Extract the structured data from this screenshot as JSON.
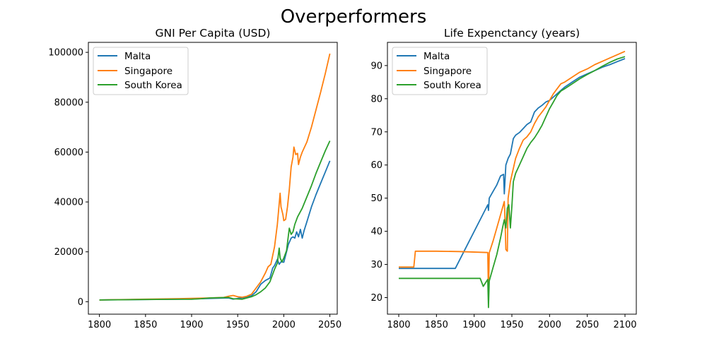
{
  "figure": {
    "suptitle": "Overperformers"
  },
  "chart_data": [
    {
      "type": "line",
      "title": "GNI Per Capita (USD)",
      "xlabel": "",
      "ylabel": "",
      "xlim": [
        1788,
        2058
      ],
      "ylim": [
        -5000,
        104000
      ],
      "xticks": [
        1800,
        1850,
        1900,
        1950,
        2000,
        2050
      ],
      "yticks": [
        0,
        20000,
        40000,
        60000,
        80000,
        100000
      ],
      "grid": false,
      "legend": "top-left",
      "series": [
        {
          "name": "Malta",
          "color": "#1f77b4",
          "points": [
            [
              1800,
              700
            ],
            [
              1850,
              900
            ],
            [
              1900,
              1100
            ],
            [
              1920,
              1300
            ],
            [
              1940,
              1500
            ],
            [
              1945,
              1000
            ],
            [
              1950,
              1300
            ],
            [
              1960,
              1800
            ],
            [
              1965,
              2400
            ],
            [
              1970,
              4000
            ],
            [
              1975,
              7000
            ],
            [
              1980,
              8500
            ],
            [
              1985,
              9500
            ],
            [
              1988,
              13500
            ],
            [
              1990,
              14500
            ],
            [
              1993,
              17000
            ],
            [
              1995,
              15000
            ],
            [
              1997,
              16000
            ],
            [
              2000,
              15800
            ],
            [
              2003,
              20000
            ],
            [
              2005,
              23000
            ],
            [
              2008,
              25500
            ],
            [
              2010,
              26000
            ],
            [
              2012,
              25500
            ],
            [
              2014,
              28000
            ],
            [
              2016,
              26000
            ],
            [
              2018,
              29000
            ],
            [
              2020,
              25500
            ],
            [
              2022,
              28500
            ],
            [
              2025,
              32000
            ],
            [
              2030,
              38000
            ],
            [
              2035,
              43000
            ],
            [
              2040,
              47500
            ],
            [
              2045,
              52000
            ],
            [
              2050,
              56500
            ]
          ]
        },
        {
          "name": "Singapore",
          "color": "#ff7f0e",
          "points": [
            [
              1800,
              700
            ],
            [
              1850,
              1000
            ],
            [
              1900,
              1300
            ],
            [
              1920,
              1500
            ],
            [
              1935,
              1700
            ],
            [
              1940,
              2200
            ],
            [
              1945,
              2500
            ],
            [
              1950,
              2000
            ],
            [
              1955,
              1800
            ],
            [
              1960,
              2200
            ],
            [
              1965,
              3000
            ],
            [
              1970,
              5500
            ],
            [
              1975,
              8000
            ],
            [
              1980,
              11500
            ],
            [
              1983,
              14000
            ],
            [
              1986,
              15000
            ],
            [
              1990,
              22000
            ],
            [
              1993,
              31000
            ],
            [
              1996,
              43500
            ],
            [
              1997,
              38000
            ],
            [
              1999,
              35000
            ],
            [
              2000,
              32500
            ],
            [
              2002,
              33000
            ],
            [
              2004,
              38000
            ],
            [
              2006,
              45000
            ],
            [
              2008,
              54000
            ],
            [
              2010,
              58000
            ],
            [
              2011,
              62000
            ],
            [
              2013,
              59000
            ],
            [
              2015,
              59500
            ],
            [
              2016,
              55000
            ],
            [
              2018,
              58000
            ],
            [
              2020,
              60000
            ],
            [
              2025,
              64000
            ],
            [
              2030,
              70000
            ],
            [
              2035,
              77000
            ],
            [
              2040,
              84000
            ],
            [
              2045,
              91500
            ],
            [
              2050,
              99500
            ]
          ]
        },
        {
          "name": "South Korea",
          "color": "#2ca02c",
          "points": [
            [
              1800,
              700
            ],
            [
              1850,
              900
            ],
            [
              1900,
              1000
            ],
            [
              1910,
              1200
            ],
            [
              1920,
              1500
            ],
            [
              1930,
              1600
            ],
            [
              1940,
              1700
            ],
            [
              1945,
              1200
            ],
            [
              1950,
              1100
            ],
            [
              1955,
              1000
            ],
            [
              1960,
              1500
            ],
            [
              1965,
              2000
            ],
            [
              1970,
              2800
            ],
            [
              1975,
              4000
            ],
            [
              1980,
              5500
            ],
            [
              1985,
              8000
            ],
            [
              1990,
              13000
            ],
            [
              1993,
              15500
            ],
            [
              1995,
              21500
            ],
            [
              1996,
              17500
            ],
            [
              1998,
              16000
            ],
            [
              2000,
              17500
            ],
            [
              2003,
              20500
            ],
            [
              2006,
              29500
            ],
            [
              2008,
              27000
            ],
            [
              2010,
              28000
            ],
            [
              2012,
              31000
            ],
            [
              2015,
              34000
            ],
            [
              2020,
              37500
            ],
            [
              2025,
              42000
            ],
            [
              2030,
              46500
            ],
            [
              2035,
              51500
            ],
            [
              2040,
              56000
            ],
            [
              2045,
              60500
            ],
            [
              2050,
              64500
            ]
          ]
        }
      ]
    },
    {
      "type": "line",
      "title": "Life Expenctancy (years)",
      "xlabel": "",
      "ylabel": "",
      "xlim": [
        1785,
        2115
      ],
      "ylim": [
        15,
        97
      ],
      "xticks": [
        1800,
        1850,
        1900,
        1950,
        2000,
        2050,
        2100
      ],
      "yticks": [
        20,
        30,
        40,
        50,
        60,
        70,
        80,
        90
      ],
      "grid": false,
      "legend": "top-left",
      "series": [
        {
          "name": "Malta",
          "color": "#1f77b4",
          "points": [
            [
              1800,
              28.8
            ],
            [
              1850,
              28.8
            ],
            [
              1875,
              28.8
            ],
            [
              1918,
              48
            ],
            [
              1919,
              46.3
            ],
            [
              1920,
              50
            ],
            [
              1925,
              52
            ],
            [
              1930,
              54
            ],
            [
              1935,
              56.7
            ],
            [
              1939,
              57.2
            ],
            [
              1940,
              51.3
            ],
            [
              1942,
              60
            ],
            [
              1945,
              62
            ],
            [
              1948,
              63.3
            ],
            [
              1952,
              68
            ],
            [
              1955,
              69
            ],
            [
              1960,
              69.8
            ],
            [
              1965,
              71
            ],
            [
              1970,
              72.2
            ],
            [
              1975,
              73
            ],
            [
              1980,
              76
            ],
            [
              1985,
              77.2
            ],
            [
              1990,
              78
            ],
            [
              1995,
              79
            ],
            [
              2000,
              79.5
            ],
            [
              2005,
              80.5
            ],
            [
              2010,
              81.5
            ],
            [
              2015,
              82.5
            ],
            [
              2020,
              83.5
            ],
            [
              2030,
              85
            ],
            [
              2040,
              86.5
            ],
            [
              2050,
              87.5
            ],
            [
              2060,
              88.5
            ],
            [
              2070,
              89.5
            ],
            [
              2080,
              90.3
            ],
            [
              2090,
              91.2
            ],
            [
              2100,
              92.1
            ]
          ]
        },
        {
          "name": "Singapore",
          "color": "#ff7f0e",
          "points": [
            [
              1800,
              29.2
            ],
            [
              1820,
              29.2
            ],
            [
              1822,
              34
            ],
            [
              1850,
              34
            ],
            [
              1880,
              33.9
            ],
            [
              1918,
              33.6
            ],
            [
              1919,
              20.5
            ],
            [
              1920,
              33.5
            ],
            [
              1925,
              37
            ],
            [
              1930,
              41
            ],
            [
              1935,
              45
            ],
            [
              1940,
              49
            ],
            [
              1941,
              43
            ],
            [
              1942,
              34.5
            ],
            [
              1944,
              34
            ],
            [
              1945,
              50
            ],
            [
              1948,
              55
            ],
            [
              1952,
              59
            ],
            [
              1955,
              62
            ],
            [
              1960,
              65
            ],
            [
              1965,
              67.5
            ],
            [
              1970,
              68.5
            ],
            [
              1975,
              70
            ],
            [
              1980,
              72.5
            ],
            [
              1985,
              74.5
            ],
            [
              1990,
              76
            ],
            [
              1995,
              77.5
            ],
            [
              2000,
              79.5
            ],
            [
              2005,
              81.5
            ],
            [
              2010,
              83
            ],
            [
              2015,
              84.5
            ],
            [
              2020,
              85
            ],
            [
              2030,
              86.5
            ],
            [
              2040,
              88
            ],
            [
              2050,
              89
            ],
            [
              2060,
              90.3
            ],
            [
              2070,
              91.3
            ],
            [
              2080,
              92.3
            ],
            [
              2090,
              93.3
            ],
            [
              2100,
              94.3
            ]
          ]
        },
        {
          "name": "South Korea",
          "color": "#2ca02c",
          "points": [
            [
              1800,
              25.8
            ],
            [
              1850,
              25.8
            ],
            [
              1900,
              25.8
            ],
            [
              1908,
              25.8
            ],
            [
              1912,
              23.4
            ],
            [
              1918,
              25.5
            ],
            [
              1919,
              17
            ],
            [
              1920,
              25
            ],
            [
              1925,
              29
            ],
            [
              1930,
              33
            ],
            [
              1935,
              38
            ],
            [
              1938,
              41.5
            ],
            [
              1940,
              43.5
            ],
            [
              1942,
              41
            ],
            [
              1944,
              47
            ],
            [
              1946,
              48
            ],
            [
              1948,
              41
            ],
            [
              1950,
              47.5
            ],
            [
              1952,
              55
            ],
            [
              1955,
              57.5
            ],
            [
              1960,
              60
            ],
            [
              1965,
              62.5
            ],
            [
              1970,
              65
            ],
            [
              1975,
              66.8
            ],
            [
              1980,
              68.2
            ],
            [
              1985,
              70
            ],
            [
              1990,
              72
            ],
            [
              1995,
              74.5
            ],
            [
              2000,
              77
            ],
            [
              2005,
              79
            ],
            [
              2010,
              81
            ],
            [
              2015,
              82.3
            ],
            [
              2020,
              83
            ],
            [
              2030,
              84.5
            ],
            [
              2040,
              86
            ],
            [
              2050,
              87.3
            ],
            [
              2060,
              88.5
            ],
            [
              2070,
              89.8
            ],
            [
              2080,
              91
            ],
            [
              2090,
              92
            ],
            [
              2100,
              92.7
            ]
          ]
        }
      ]
    }
  ]
}
